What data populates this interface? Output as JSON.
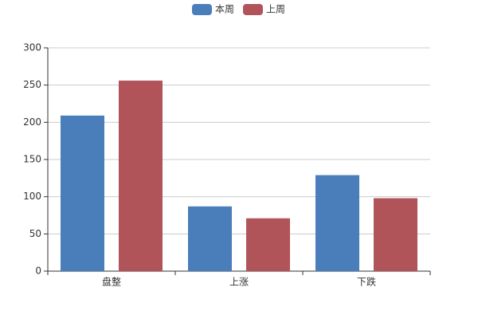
{
  "chart_data": {
    "type": "bar",
    "categories": [
      "盘整",
      "上涨",
      "下跌"
    ],
    "series": [
      {
        "name": "本周",
        "color": "#4a7ebb",
        "values": [
          209,
          87,
          129
        ]
      },
      {
        "name": "上周",
        "color": "#b0545a",
        "values": [
          256,
          71,
          98
        ]
      }
    ],
    "ylim": [
      0,
      300
    ],
    "yticks": [
      0,
      50,
      100,
      150,
      200,
      250,
      300
    ],
    "grid": true,
    "legend": "top"
  }
}
